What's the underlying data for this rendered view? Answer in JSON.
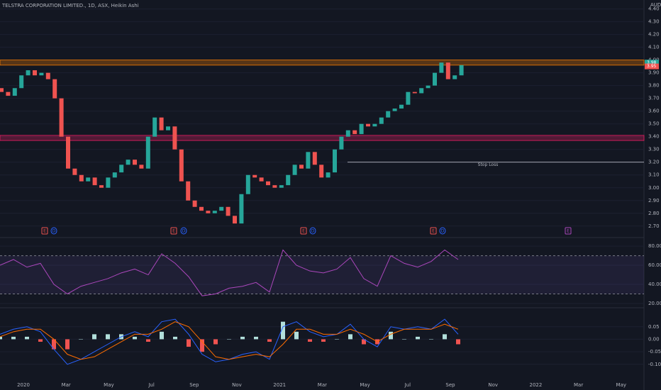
{
  "chart_data": [
    {
      "type": "candlestick",
      "title": "TELSTRA CORPORATION LIMITED., 1D, ASX, Heikin Ashi",
      "unit_label": "AUD",
      "up_color": "#26a69a",
      "down_color": "#ef5350",
      "open": [
        3.78,
        3.75,
        3.72,
        3.78,
        3.88,
        3.92,
        3.88,
        3.9,
        3.85,
        3.7,
        3.4,
        3.15,
        3.1,
        3.05,
        3.08,
        3.02,
        3.0,
        3.08,
        3.12,
        3.18,
        3.22,
        3.18,
        3.15,
        3.4,
        3.55,
        3.45,
        3.48,
        3.3,
        3.05,
        2.9,
        2.85,
        2.82,
        2.8,
        2.82,
        2.85,
        2.78,
        2.72,
        2.95,
        3.1,
        3.08,
        3.05,
        3.02,
        3.0,
        3.02,
        3.1,
        3.18,
        3.15,
        3.28,
        3.18,
        3.08,
        3.12,
        3.3,
        3.4,
        3.45,
        3.42,
        3.5,
        3.48,
        3.5,
        3.55,
        3.6,
        3.62,
        3.65,
        3.75,
        3.74,
        3.78,
        3.8,
        3.9,
        3.98,
        3.85,
        3.88
      ],
      "close": [
        3.75,
        3.72,
        3.78,
        3.88,
        3.92,
        3.88,
        3.9,
        3.85,
        3.7,
        3.4,
        3.15,
        3.1,
        3.05,
        3.08,
        3.02,
        3.0,
        3.08,
        3.12,
        3.18,
        3.22,
        3.18,
        3.15,
        3.4,
        3.55,
        3.45,
        3.48,
        3.3,
        3.05,
        2.9,
        2.85,
        2.82,
        2.8,
        2.82,
        2.85,
        2.78,
        2.72,
        2.95,
        3.1,
        3.08,
        3.05,
        3.02,
        3.0,
        3.02,
        3.1,
        3.18,
        3.15,
        3.28,
        3.18,
        3.08,
        3.12,
        3.3,
        3.4,
        3.45,
        3.42,
        3.5,
        3.48,
        3.5,
        3.55,
        3.6,
        3.62,
        3.65,
        3.75,
        3.74,
        3.78,
        3.8,
        3.9,
        3.98,
        3.85,
        3.88,
        3.96
      ],
      "ylim": [
        2.61,
        4.47
      ],
      "yticks": [
        {
          "value": 2.7,
          "label": "2.70"
        },
        {
          "value": 2.8,
          "label": "2.80"
        },
        {
          "value": 2.9,
          "label": "2.90"
        },
        {
          "value": 3.0,
          "label": "3.00"
        },
        {
          "value": 3.1,
          "label": "3.10"
        },
        {
          "value": 3.2,
          "label": "3.20"
        },
        {
          "value": 3.3,
          "label": "3.30"
        },
        {
          "value": 3.4,
          "label": "3.40"
        },
        {
          "value": 3.5,
          "label": "3.50"
        },
        {
          "value": 3.6,
          "label": "3.60"
        },
        {
          "value": 3.7,
          "label": "3.70"
        },
        {
          "value": 3.8,
          "label": "3.80"
        },
        {
          "value": 3.9,
          "label": "3.90"
        },
        {
          "value": 4.0,
          "label": "4.00"
        },
        {
          "value": 4.1,
          "label": "4.10"
        },
        {
          "value": 4.2,
          "label": "4.20"
        },
        {
          "value": 4.3,
          "label": "4.30"
        },
        {
          "value": 4.4,
          "label": "4.40"
        }
      ],
      "zones": [
        {
          "from": 3.96,
          "to": 4.0,
          "color": "#f57c00"
        },
        {
          "from": 3.37,
          "to": 3.41,
          "color": "#e91e63"
        }
      ],
      "stop_loss": {
        "value": 3.2,
        "label": "Stop Loss"
      },
      "price_markers": [
        {
          "value": 3.98,
          "label": "3.98",
          "color": "#26a69a"
        },
        {
          "value": 3.95,
          "label": "3.95",
          "color": "#ef5350"
        }
      ],
      "events": [
        "E",
        "D",
        "E",
        "D",
        "E",
        "D",
        "E",
        "D",
        "E"
      ],
      "time_labels": [
        "2020",
        "Mar",
        "May",
        "Jul",
        "Sep",
        "Nov",
        "2021",
        "Mar",
        "May",
        "Jul",
        "Sep",
        "Nov",
        "2022",
        "Mar",
        "May"
      ]
    },
    {
      "type": "line",
      "color": "#ab47bc",
      "values": [
        60,
        66,
        58,
        62,
        40,
        30,
        38,
        42,
        46,
        52,
        56,
        50,
        72,
        62,
        48,
        28,
        30,
        36,
        38,
        42,
        32,
        76,
        60,
        54,
        52,
        56,
        68,
        46,
        38,
        70,
        62,
        58,
        64,
        76,
        66
      ],
      "ylim": [
        17,
        89
      ],
      "yticks": [
        {
          "value": 20,
          "label": "20.00"
        },
        {
          "value": 40,
          "label": "40.00"
        },
        {
          "value": 60,
          "label": "60.00"
        },
        {
          "value": 80,
          "label": "80.00"
        }
      ],
      "bands": [
        30,
        70
      ]
    },
    {
      "type": "macd",
      "macd": [
        0.02,
        0.04,
        0.05,
        0.03,
        -0.04,
        -0.1,
        -0.08,
        -0.05,
        -0.02,
        0.01,
        0.03,
        0.01,
        0.07,
        0.08,
        0.02,
        -0.06,
        -0.09,
        -0.08,
        -0.06,
        -0.05,
        -0.08,
        0.05,
        0.07,
        0.03,
        0.01,
        0.02,
        0.06,
        0.0,
        -0.03,
        0.05,
        0.04,
        0.05,
        0.04,
        0.08,
        0.02
      ],
      "signal": [
        0.01,
        0.03,
        0.04,
        0.04,
        0.0,
        -0.06,
        -0.08,
        -0.07,
        -0.04,
        -0.01,
        0.02,
        0.02,
        0.04,
        0.07,
        0.05,
        -0.01,
        -0.07,
        -0.08,
        -0.07,
        -0.06,
        -0.07,
        -0.02,
        0.04,
        0.04,
        0.02,
        0.02,
        0.04,
        0.02,
        -0.01,
        0.02,
        0.04,
        0.04,
        0.04,
        0.06,
        0.04
      ],
      "histogram": [
        0.01,
        0.01,
        0.01,
        -0.01,
        -0.04,
        -0.04,
        0.0,
        0.02,
        0.02,
        0.02,
        0.01,
        -0.01,
        0.03,
        0.01,
        -0.03,
        -0.05,
        -0.02,
        0.0,
        0.01,
        0.01,
        -0.01,
        0.07,
        0.03,
        -0.01,
        -0.01,
        0.0,
        0.02,
        -0.02,
        -0.02,
        0.03,
        0.0,
        0.01,
        0.0,
        0.02,
        -0.02
      ],
      "macd_color": "#2962ff",
      "signal_color": "#ff6d00",
      "hist_up_color": "#b2dfdb",
      "hist_down_color": "#ef5350",
      "ylim": [
        -0.16,
        0.12
      ],
      "yticks": [
        {
          "value": -0.1,
          "label": "-0.10"
        },
        {
          "value": -0.05,
          "label": "-0.05"
        },
        {
          "value": 0,
          "label": "0.00"
        },
        {
          "value": 0.05,
          "label": "0.05"
        }
      ]
    }
  ]
}
